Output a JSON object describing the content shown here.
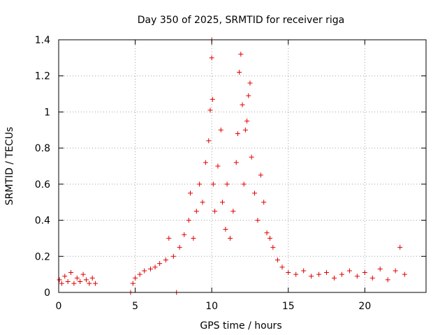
{
  "chart_data": {
    "type": "scatter",
    "title": "Day 350 of 2025, SRMTID for receiver riga",
    "xlabel": "GPS time / hours",
    "ylabel": "SRMTID / TECUs",
    "xlim": [
      0,
      24
    ],
    "ylim": [
      0,
      1.4
    ],
    "x_ticks": [
      0,
      5,
      10,
      15,
      20
    ],
    "x_tick_labels": [
      "0",
      "5",
      "10",
      "15",
      "20"
    ],
    "y_ticks": [
      0,
      0.2,
      0.4,
      0.6,
      0.8,
      1.0,
      1.2,
      1.4
    ],
    "y_tick_labels": [
      "0",
      "0.2",
      "0.4",
      "0.6",
      "0.8",
      "1",
      "1.2",
      "1.4"
    ],
    "grid": true,
    "marker": "+",
    "color": "#e00000",
    "series": [
      {
        "name": "SRMTID",
        "points": [
          [
            0.05,
            0.07
          ],
          [
            0.2,
            0.05
          ],
          [
            0.4,
            0.09
          ],
          [
            0.6,
            0.06
          ],
          [
            0.8,
            0.11
          ],
          [
            1.0,
            0.05
          ],
          [
            1.2,
            0.08
          ],
          [
            1.4,
            0.06
          ],
          [
            1.6,
            0.1
          ],
          [
            1.8,
            0.07
          ],
          [
            2.0,
            0.05
          ],
          [
            2.2,
            0.08
          ],
          [
            2.4,
            0.05
          ],
          [
            4.7,
            0.0
          ],
          [
            4.85,
            0.05
          ],
          [
            5.0,
            0.08
          ],
          [
            5.3,
            0.1
          ],
          [
            5.6,
            0.12
          ],
          [
            6.0,
            0.13
          ],
          [
            6.3,
            0.14
          ],
          [
            6.6,
            0.16
          ],
          [
            7.0,
            0.18
          ],
          [
            7.2,
            0.3
          ],
          [
            7.5,
            0.2
          ],
          [
            7.7,
            0.0
          ],
          [
            7.9,
            0.25
          ],
          [
            8.2,
            0.32
          ],
          [
            8.5,
            0.4
          ],
          [
            8.6,
            0.55
          ],
          [
            8.8,
            0.3
          ],
          [
            9.0,
            0.45
          ],
          [
            9.2,
            0.6
          ],
          [
            9.4,
            0.5
          ],
          [
            9.6,
            0.72
          ],
          [
            9.8,
            0.84
          ],
          [
            9.9,
            1.01
          ],
          [
            10.0,
            1.3
          ],
          [
            10.0,
            1.4
          ],
          [
            10.05,
            1.07
          ],
          [
            10.1,
            0.6
          ],
          [
            10.2,
            0.45
          ],
          [
            10.4,
            0.7
          ],
          [
            10.6,
            0.9
          ],
          [
            10.7,
            0.5
          ],
          [
            10.9,
            0.35
          ],
          [
            11.0,
            0.6
          ],
          [
            11.2,
            0.3
          ],
          [
            11.4,
            0.45
          ],
          [
            11.6,
            0.72
          ],
          [
            11.7,
            0.88
          ],
          [
            11.8,
            1.22
          ],
          [
            11.9,
            1.32
          ],
          [
            12.0,
            1.04
          ],
          [
            12.1,
            0.6
          ],
          [
            12.2,
            0.9
          ],
          [
            12.3,
            0.95
          ],
          [
            12.4,
            1.09
          ],
          [
            12.5,
            1.16
          ],
          [
            12.6,
            0.75
          ],
          [
            12.8,
            0.55
          ],
          [
            13.0,
            0.4
          ],
          [
            13.2,
            0.65
          ],
          [
            13.4,
            0.5
          ],
          [
            13.6,
            0.33
          ],
          [
            13.8,
            0.3
          ],
          [
            14.0,
            0.25
          ],
          [
            14.3,
            0.18
          ],
          [
            14.6,
            0.14
          ],
          [
            15.0,
            0.11
          ],
          [
            15.5,
            0.1
          ],
          [
            16.0,
            0.12
          ],
          [
            16.5,
            0.09
          ],
          [
            17.0,
            0.1
          ],
          [
            17.5,
            0.11
          ],
          [
            18.0,
            0.08
          ],
          [
            18.5,
            0.1
          ],
          [
            19.0,
            0.12
          ],
          [
            19.5,
            0.09
          ],
          [
            20.0,
            0.11
          ],
          [
            20.5,
            0.08
          ],
          [
            21.0,
            0.13
          ],
          [
            21.5,
            0.07
          ],
          [
            22.0,
            0.12
          ],
          [
            22.3,
            0.25
          ],
          [
            22.6,
            0.1
          ]
        ]
      }
    ]
  }
}
